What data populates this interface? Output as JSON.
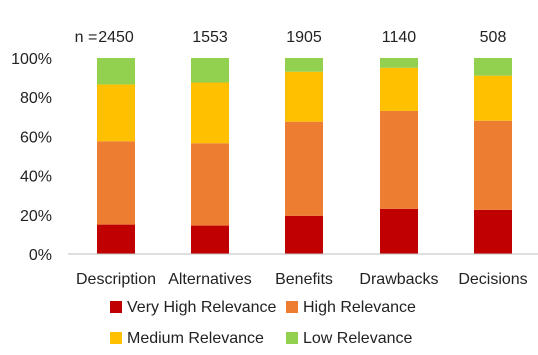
{
  "chart_data": {
    "type": "bar",
    "stacked": true,
    "categories": [
      "Description",
      "Alternatives",
      "Benefits",
      "Drawbacks",
      "Decisions"
    ],
    "n_label": "n =",
    "n_values": [
      "2450",
      "1553",
      "1905",
      "1140",
      "508"
    ],
    "series": [
      {
        "name": "Very High Relevance",
        "color": "#c00000",
        "values": [
          15,
          14.5,
          19.5,
          23,
          22.5
        ]
      },
      {
        "name": "High Relevance",
        "color": "#ed7d31",
        "values": [
          42.5,
          42,
          48,
          50,
          45.5
        ]
      },
      {
        "name": "Medium Relevance",
        "color": "#ffc000",
        "values": [
          29,
          31,
          25.5,
          22,
          23
        ]
      },
      {
        "name": "Low Relevance",
        "color": "#92d050",
        "values": [
          13.5,
          12.5,
          7,
          5,
          9
        ]
      }
    ],
    "ylim": [
      0,
      100
    ],
    "yticks": [
      "0%",
      "20%",
      "40%",
      "60%",
      "80%",
      "100%"
    ],
    "grid": false,
    "legend_position": "bottom"
  }
}
